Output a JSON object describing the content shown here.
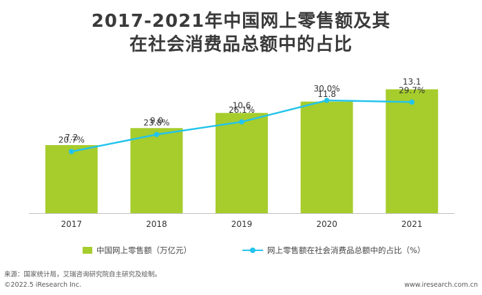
{
  "title_line1": "2017-2021年中国网上零售额及其",
  "title_line2": "在社会消费品总额中的占比",
  "chart_data": {
    "type": "bar+line",
    "categories": [
      "2017",
      "2018",
      "2019",
      "2020",
      "2021"
    ],
    "series": [
      {
        "name": "中国网上零售额（万亿元）",
        "type": "bar",
        "values": [
          7.2,
          9.0,
          10.6,
          11.8,
          13.1
        ],
        "labels": [
          "7.2",
          "9.0",
          "10.6",
          "11.8",
          "13.1"
        ],
        "color": "#a6cd2c"
      },
      {
        "name": "网上零售额在社会消费品总额中的占比（%）",
        "type": "line",
        "values": [
          20.7,
          23.8,
          26.1,
          30.0,
          29.7
        ],
        "labels": [
          "20.7%",
          "23.8%",
          "26.1%",
          "30.0%",
          "29.7%"
        ],
        "color": "#23c3ec"
      }
    ],
    "bar_ylim": [
      0,
      20
    ],
    "line_ylim": [
      0,
      90
    ],
    "legend_position": "bottom",
    "grid": false
  },
  "source": "来源：国家统计局，艾瑞咨询研究院自主研究及绘制。",
  "footer_left": "©2022.5 iResearch Inc.",
  "footer_right": "www.iresearch.com.cn"
}
